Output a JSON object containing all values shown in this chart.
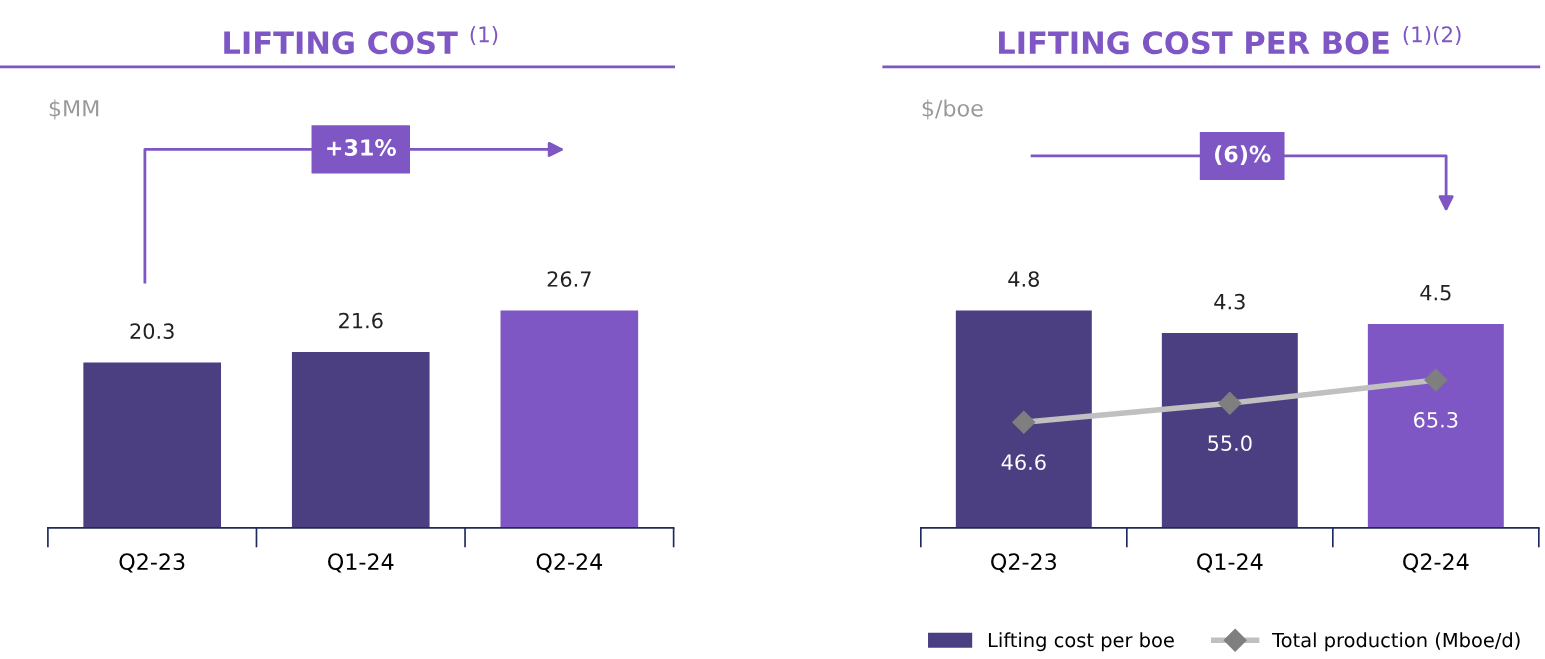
{
  "chart_data": [
    {
      "type": "bar",
      "title": "LIFTING COST $^{(1)}$",
      "ylabel": "$MM",
      "categories": [
        "Q2-23",
        "Q1-24",
        "Q2-24"
      ],
      "values": [
        20.3,
        21.6,
        26.7
      ],
      "colors": [
        "#4b3f82",
        "#4b3f82",
        "#7e57c4"
      ],
      "data_labels": true,
      "tick_labels": "x",
      "annotations": [
        "+31%"
      ],
      "grid": false,
      "legend": false
    },
    {
      "type": "bar",
      "title": "LIFTING COST PER BOE $^{(1)(2)}$",
      "ylabel": "$/boe",
      "categories": [
        "Q2-23",
        "Q1-24",
        "Q2-24"
      ],
      "series": [
        {
          "name": "Lifting cost per boe",
          "type": "bar",
          "colors": [
            "#4b3f82",
            "#4b3f82",
            "#7e57c4"
          ],
          "values": [
            4.8,
            4.3,
            4.5
          ]
        },
        {
          "name": "Total production (Mboe/d)",
          "type": "line",
          "axis": "y2",
          "color": "#c0c0c0",
          "marker": "diamond",
          "values": [
            46.6,
            55.0,
            65.3
          ],
          "value_labels": [
            "46.6",
            "55.0",
            "65.3"
          ]
        }
      ],
      "data_labels": true,
      "tick_labels": "x",
      "annotations": [
        "(6)%"
      ],
      "grid": false,
      "legend": "bottom right"
    }
  ]
}
